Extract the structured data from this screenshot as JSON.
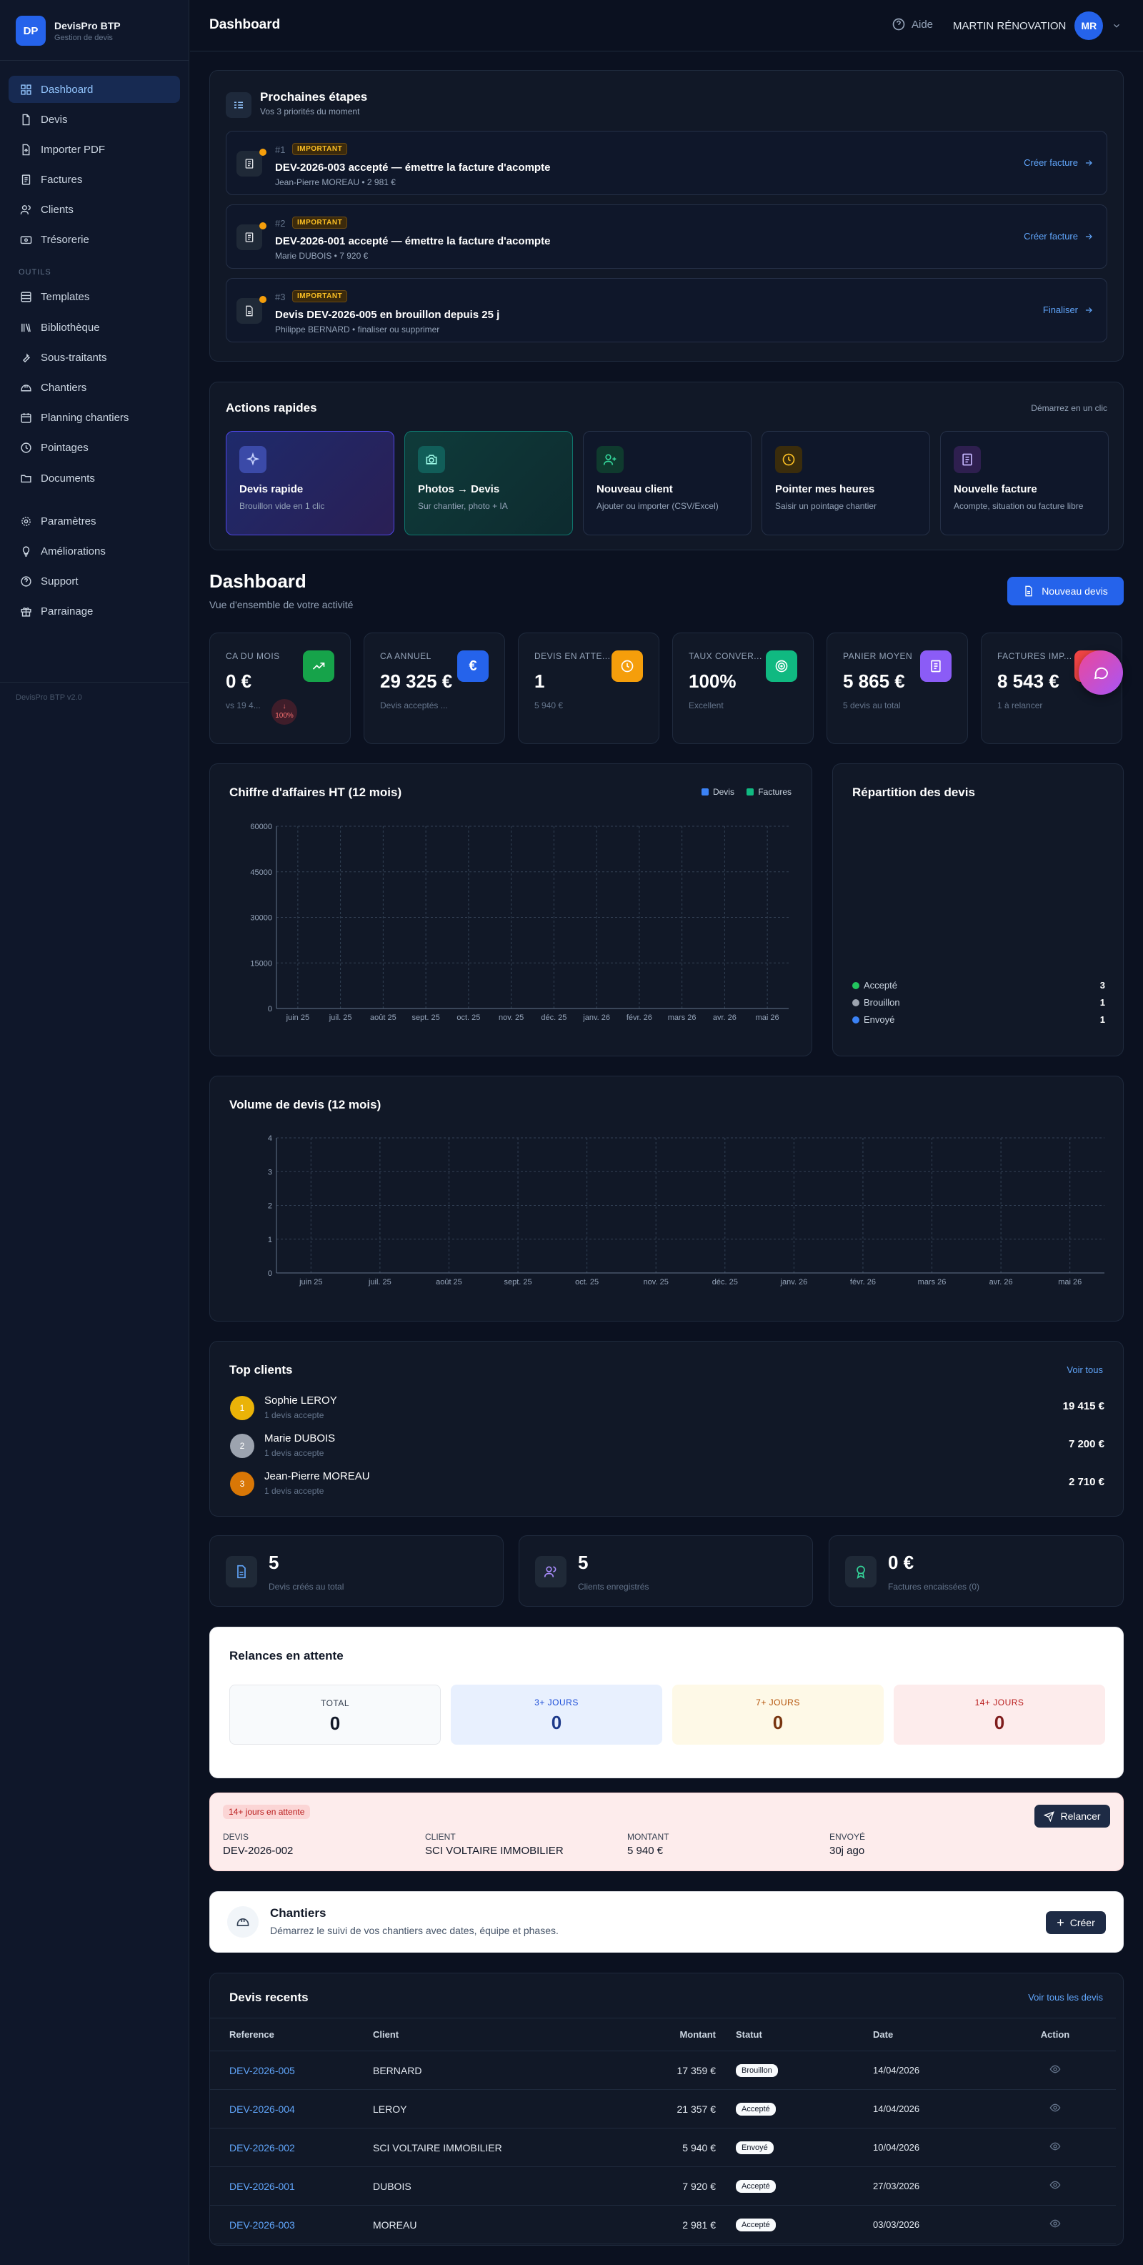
{
  "brand": {
    "logo": "DP",
    "name": "DevisPro BTP",
    "sub": "Gestion de devis",
    "version": "DevisPro BTP v2.0"
  },
  "nav": {
    "main": [
      "Dashboard",
      "Devis",
      "Importer PDF",
      "Factures",
      "Clients",
      "Trésorerie"
    ],
    "section": "OUTILS",
    "tools": [
      "Templates",
      "Bibliothèque",
      "Sous-traitants",
      "Chantiers",
      "Planning chantiers",
      "Pointages",
      "Documents"
    ],
    "bottom": [
      "Paramètres",
      "Améliorations",
      "Support",
      "Parrainage"
    ]
  },
  "topbar": {
    "title": "Dashboard",
    "help": "Aide",
    "user": "MARTIN RÉNOVATION",
    "avatar": "MR"
  },
  "next_steps": {
    "title": "Prochaines étapes",
    "sub": "Vos 3 priorités du moment",
    "badge": "IMPORTANT",
    "items": [
      {
        "num": "#1",
        "title": "DEV-2026-003 accepté — émettre la facture d'acompte",
        "sub": "Jean-Pierre MOREAU • 2 981 €",
        "action": "Créer facture"
      },
      {
        "num": "#2",
        "title": "DEV-2026-001 accepté — émettre la facture d'acompte",
        "sub": "Marie DUBOIS • 7 920 €",
        "action": "Créer facture"
      },
      {
        "num": "#3",
        "title": "Devis DEV-2026-005 en brouillon depuis 25 j",
        "sub": "Philippe BERNARD • finaliser ou supprimer",
        "action": "Finaliser"
      }
    ]
  },
  "quick": {
    "title": "Actions rapides",
    "hint": "Démarrez en un clic",
    "items": [
      {
        "t": "Devis rapide",
        "s": "Brouillon vide en 1 clic"
      },
      {
        "t": "Photos → Devis",
        "s": "Sur chantier, photo + IA"
      },
      {
        "t": "Nouveau client",
        "s": "Ajouter ou importer (CSV/Excel)"
      },
      {
        "t": "Pointer mes heures",
        "s": "Saisir un pointage chantier"
      },
      {
        "t": "Nouvelle facture",
        "s": "Acompte, situation ou facture libre"
      }
    ]
  },
  "dash": {
    "title": "Dashboard",
    "sub": "Vue d'ensemble de votre activité",
    "new_btn": "Nouveau devis"
  },
  "kpis": [
    {
      "l": "CA DU MOIS",
      "v": "0 €",
      "s": "vs 19 4...",
      "trend": "↓",
      "pct": "100%"
    },
    {
      "l": "CA ANNUEL",
      "v": "29 325 €",
      "s": "Devis acceptés ..."
    },
    {
      "l": "DEVIS EN ATTE...",
      "v": "1",
      "s": "5 940 €"
    },
    {
      "l": "TAUX CONVER...",
      "v": "100%",
      "s": "Excellent"
    },
    {
      "l": "PANIER MOYEN",
      "v": "5 865 €",
      "s": "5 devis au total"
    },
    {
      "l": "FACTURES IMP...",
      "v": "8 543 €",
      "s": "1 à relancer"
    }
  ],
  "chart_data": [
    {
      "type": "bar",
      "title": "Chiffre d'affaires HT (12 mois)",
      "categories": [
        "juin 25",
        "juil. 25",
        "août 25",
        "sept. 25",
        "oct. 25",
        "nov. 25",
        "déc. 25",
        "janv. 26",
        "févr. 26",
        "mars 26",
        "avr. 26",
        "mai 26"
      ],
      "series": [
        {
          "name": "Devis",
          "color": "#3b82f6",
          "values": [
            0,
            0,
            0,
            0,
            0,
            0,
            0,
            0,
            0,
            0,
            0,
            0
          ]
        },
        {
          "name": "Factures",
          "color": "#10b981",
          "values": [
            0,
            0,
            0,
            0,
            0,
            0,
            0,
            0,
            0,
            0,
            0,
            0
          ]
        }
      ],
      "yticks": [
        "0",
        "15000",
        "30000",
        "45000",
        "60000"
      ],
      "ylim": [
        0,
        60000
      ],
      "grid": true,
      "legend": "top-right"
    },
    {
      "type": "pie",
      "title": "Répartition des devis",
      "categories": [
        "Accepté",
        "Brouillon",
        "Envoyé"
      ],
      "values": [
        3,
        1,
        1
      ],
      "colors": [
        "#22c55e",
        "#9ca3af",
        "#3b82f6"
      ]
    },
    {
      "type": "line",
      "title": "Volume de devis (12 mois)",
      "categories": [
        "juin 25",
        "juil. 25",
        "août 25",
        "sept. 25",
        "oct. 25",
        "nov. 25",
        "déc. 25",
        "janv. 26",
        "févr. 26",
        "mars 26",
        "avr. 26",
        "mai 26"
      ],
      "yticks": [
        "0",
        "1",
        "2",
        "3",
        "4"
      ],
      "ylim": [
        0,
        4
      ],
      "grid": true
    }
  ],
  "top_clients": {
    "title": "Top clients",
    "link": "Voir tous",
    "items": [
      {
        "rank": "1",
        "name": "Sophie LEROY",
        "sub": "1 devis accepte",
        "amt": "19 415 €",
        "color": "#eab308"
      },
      {
        "rank": "2",
        "name": "Marie DUBOIS",
        "sub": "1 devis accepte",
        "amt": "7 200 €",
        "color": "#9ca3af"
      },
      {
        "rank": "3",
        "name": "Jean-Pierre MOREAU",
        "sub": "1 devis accepte",
        "amt": "2 710 €",
        "color": "#d97706"
      }
    ]
  },
  "stats": [
    {
      "v": "5",
      "s": "Devis créés au total"
    },
    {
      "v": "5",
      "s": "Clients enregistrés"
    },
    {
      "v": "0 €",
      "s": "Factures encaissées (0)"
    }
  ],
  "relances": {
    "title": "Relances en attente",
    "cells": [
      {
        "l": "TOTAL",
        "v": "0"
      },
      {
        "l": "3+ JOURS",
        "v": "0"
      },
      {
        "l": "7+ JOURS",
        "v": "0"
      },
      {
        "l": "14+ JOURS",
        "v": "0"
      }
    ]
  },
  "overdue": {
    "badge": "14+ jours en attente",
    "btn": "Relancer",
    "cols": [
      {
        "l": "DEVIS",
        "v": "DEV-2026-002"
      },
      {
        "l": "CLIENT",
        "v": "SCI VOLTAIRE IMMOBILIER"
      },
      {
        "l": "MONTANT",
        "v": "5 940 €"
      },
      {
        "l": "ENVOYÉ",
        "v": "30j ago"
      }
    ]
  },
  "chantiers": {
    "title": "Chantiers",
    "sub": "Démarrez le suivi de vos chantiers avec dates, équipe et phases.",
    "btn": "Créer"
  },
  "recent": {
    "title": "Devis recents",
    "link": "Voir tous les devis",
    "headers": [
      "Reference",
      "Client",
      "Montant",
      "Statut",
      "Date",
      "Action"
    ],
    "rows": [
      {
        "ref": "DEV-2026-005",
        "client": "BERNARD",
        "amt": "17 359 €",
        "status": "Brouillon",
        "date": "14/04/2026"
      },
      {
        "ref": "DEV-2026-004",
        "client": "LEROY",
        "amt": "21 357 €",
        "status": "Accepté",
        "date": "14/04/2026"
      },
      {
        "ref": "DEV-2026-002",
        "client": "SCI VOLTAIRE IMMOBILIER",
        "amt": "5 940 €",
        "status": "Envoyé",
        "date": "10/04/2026"
      },
      {
        "ref": "DEV-2026-001",
        "client": "DUBOIS",
        "amt": "7 920 €",
        "status": "Accepté",
        "date": "27/03/2026"
      },
      {
        "ref": "DEV-2026-003",
        "client": "MOREAU",
        "amt": "2 981 €",
        "status": "Accepté",
        "date": "03/03/2026"
      }
    ]
  }
}
